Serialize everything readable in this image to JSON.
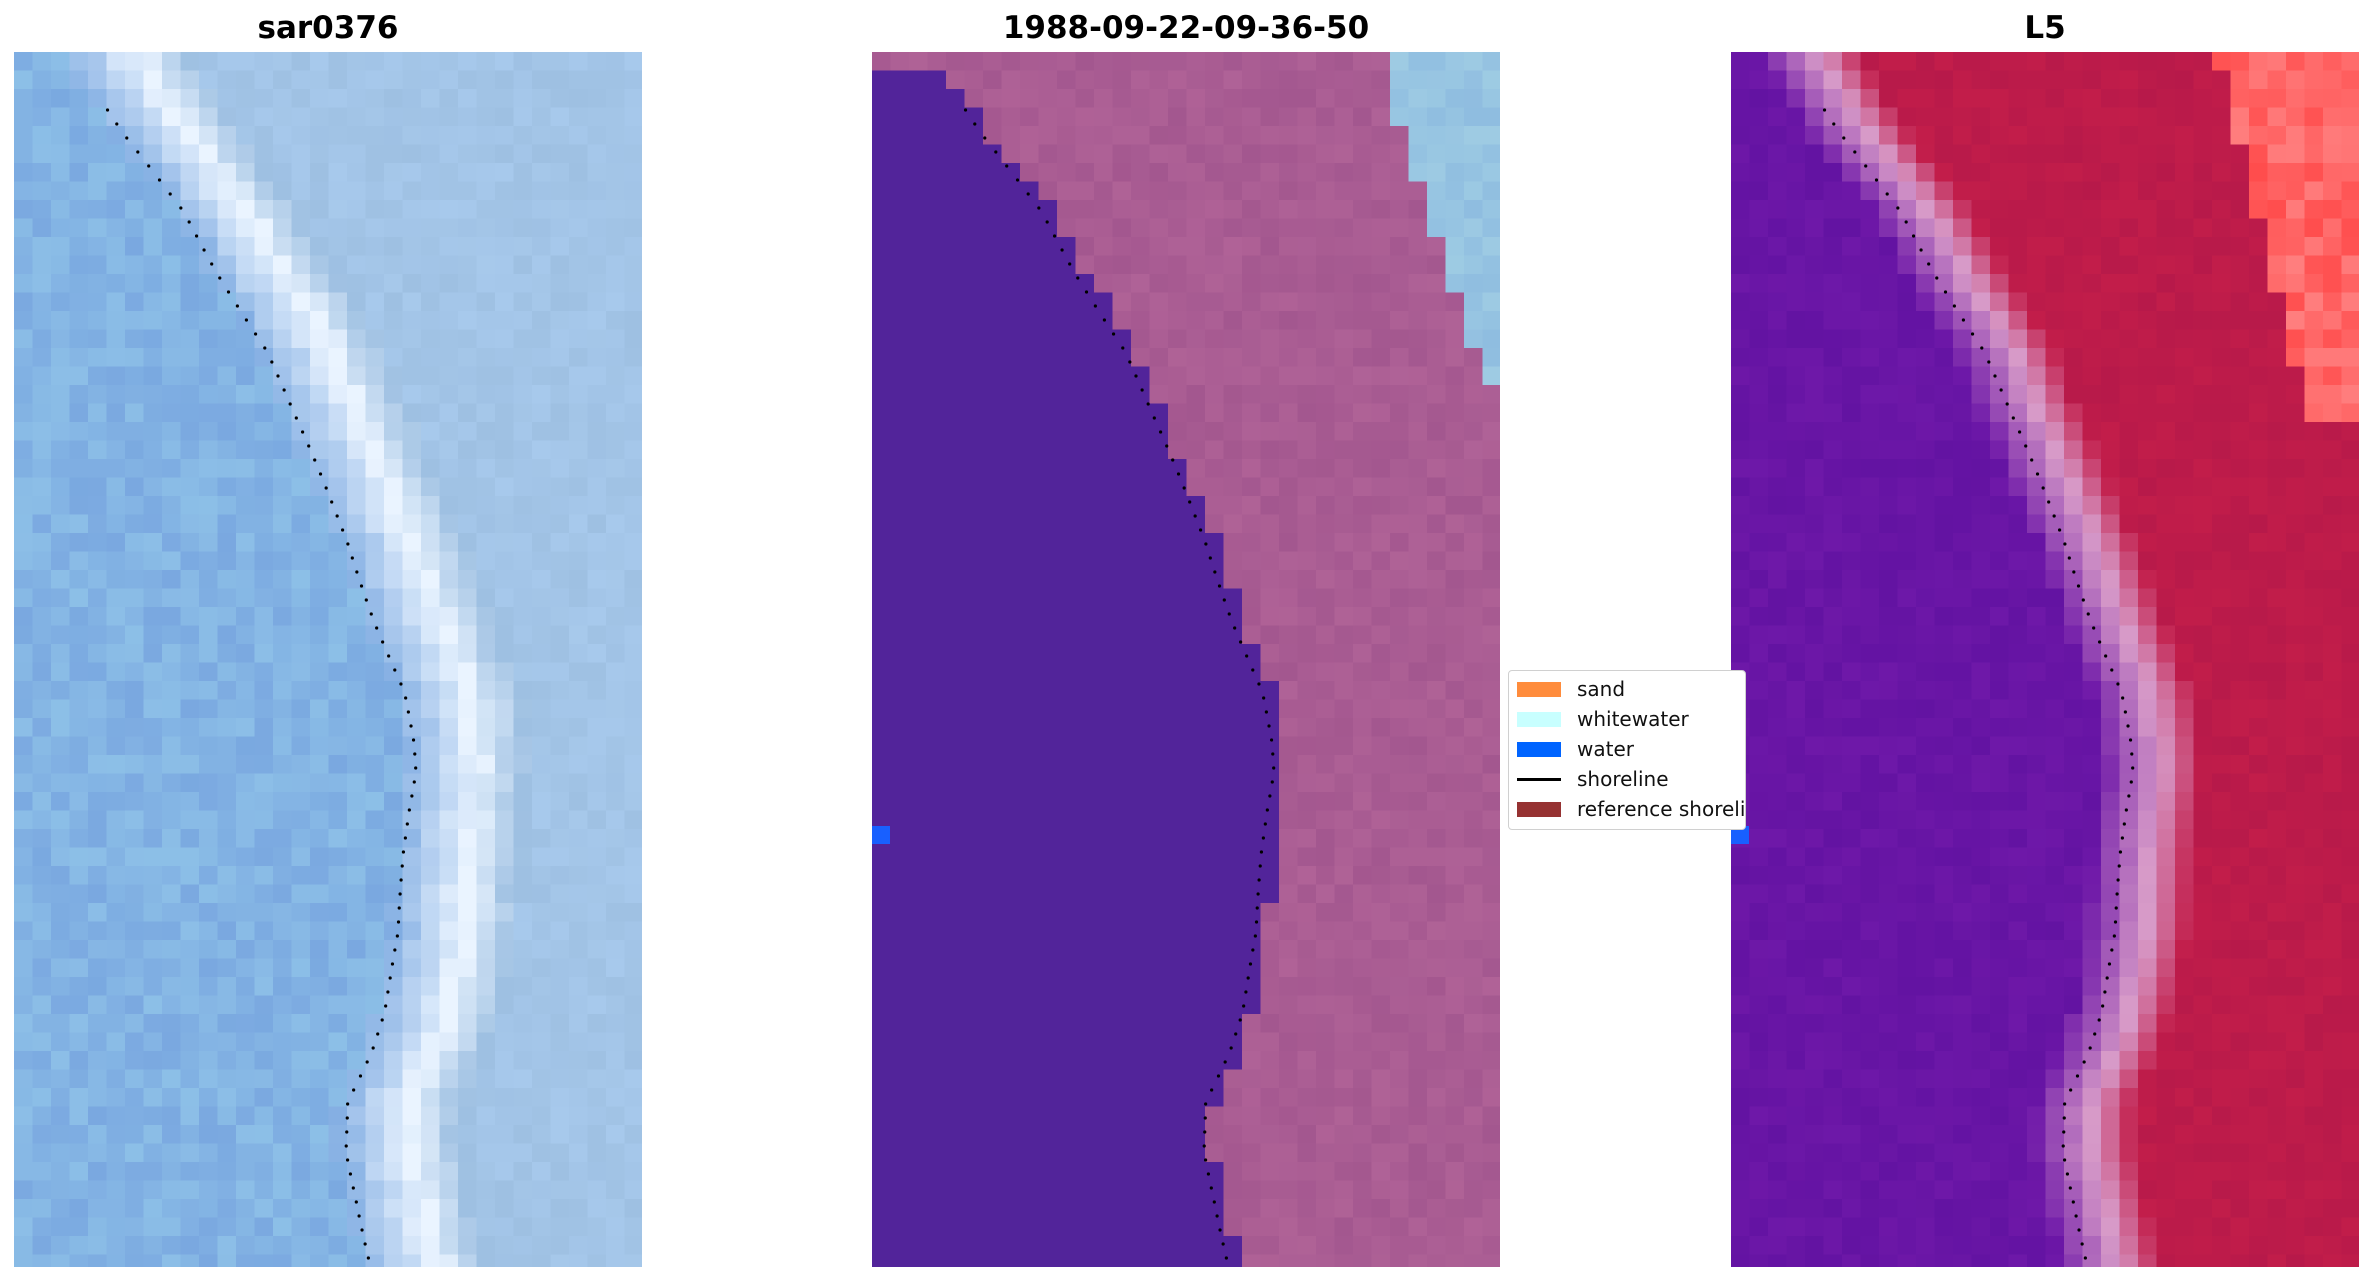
{
  "panels": [
    {
      "title": "sar0376",
      "kind": "rgb"
    },
    {
      "title": "1988-09-22-09-36-50",
      "kind": "classified"
    },
    {
      "title": "L5",
      "kind": "index"
    }
  ],
  "legend": {
    "items": [
      {
        "label": "sand",
        "color": "#ff8c3c",
        "shape": "patch"
      },
      {
        "label": "whitewater",
        "color": "#c8ffff",
        "shape": "patch"
      },
      {
        "label": "water",
        "color": "#0064ff",
        "shape": "patch"
      },
      {
        "label": "shoreline",
        "color": "#000000",
        "shape": "line"
      },
      {
        "label": "reference shoreline",
        "color": "#963232",
        "shape": "patch"
      }
    ]
  },
  "colors": {
    "water_class": "#52249a",
    "land_class": "#a3578f",
    "sky_top_right": "#8fbde0",
    "index_water": "#6e18a8",
    "index_land": "#c21d4a",
    "index_hot": "#ff4d4d",
    "rgb_water": "#7aa8e0",
    "rgb_surf": "#eaf4ff",
    "rgb_land": "#9ec0e2",
    "water_pixel": "#1860ff"
  }
}
